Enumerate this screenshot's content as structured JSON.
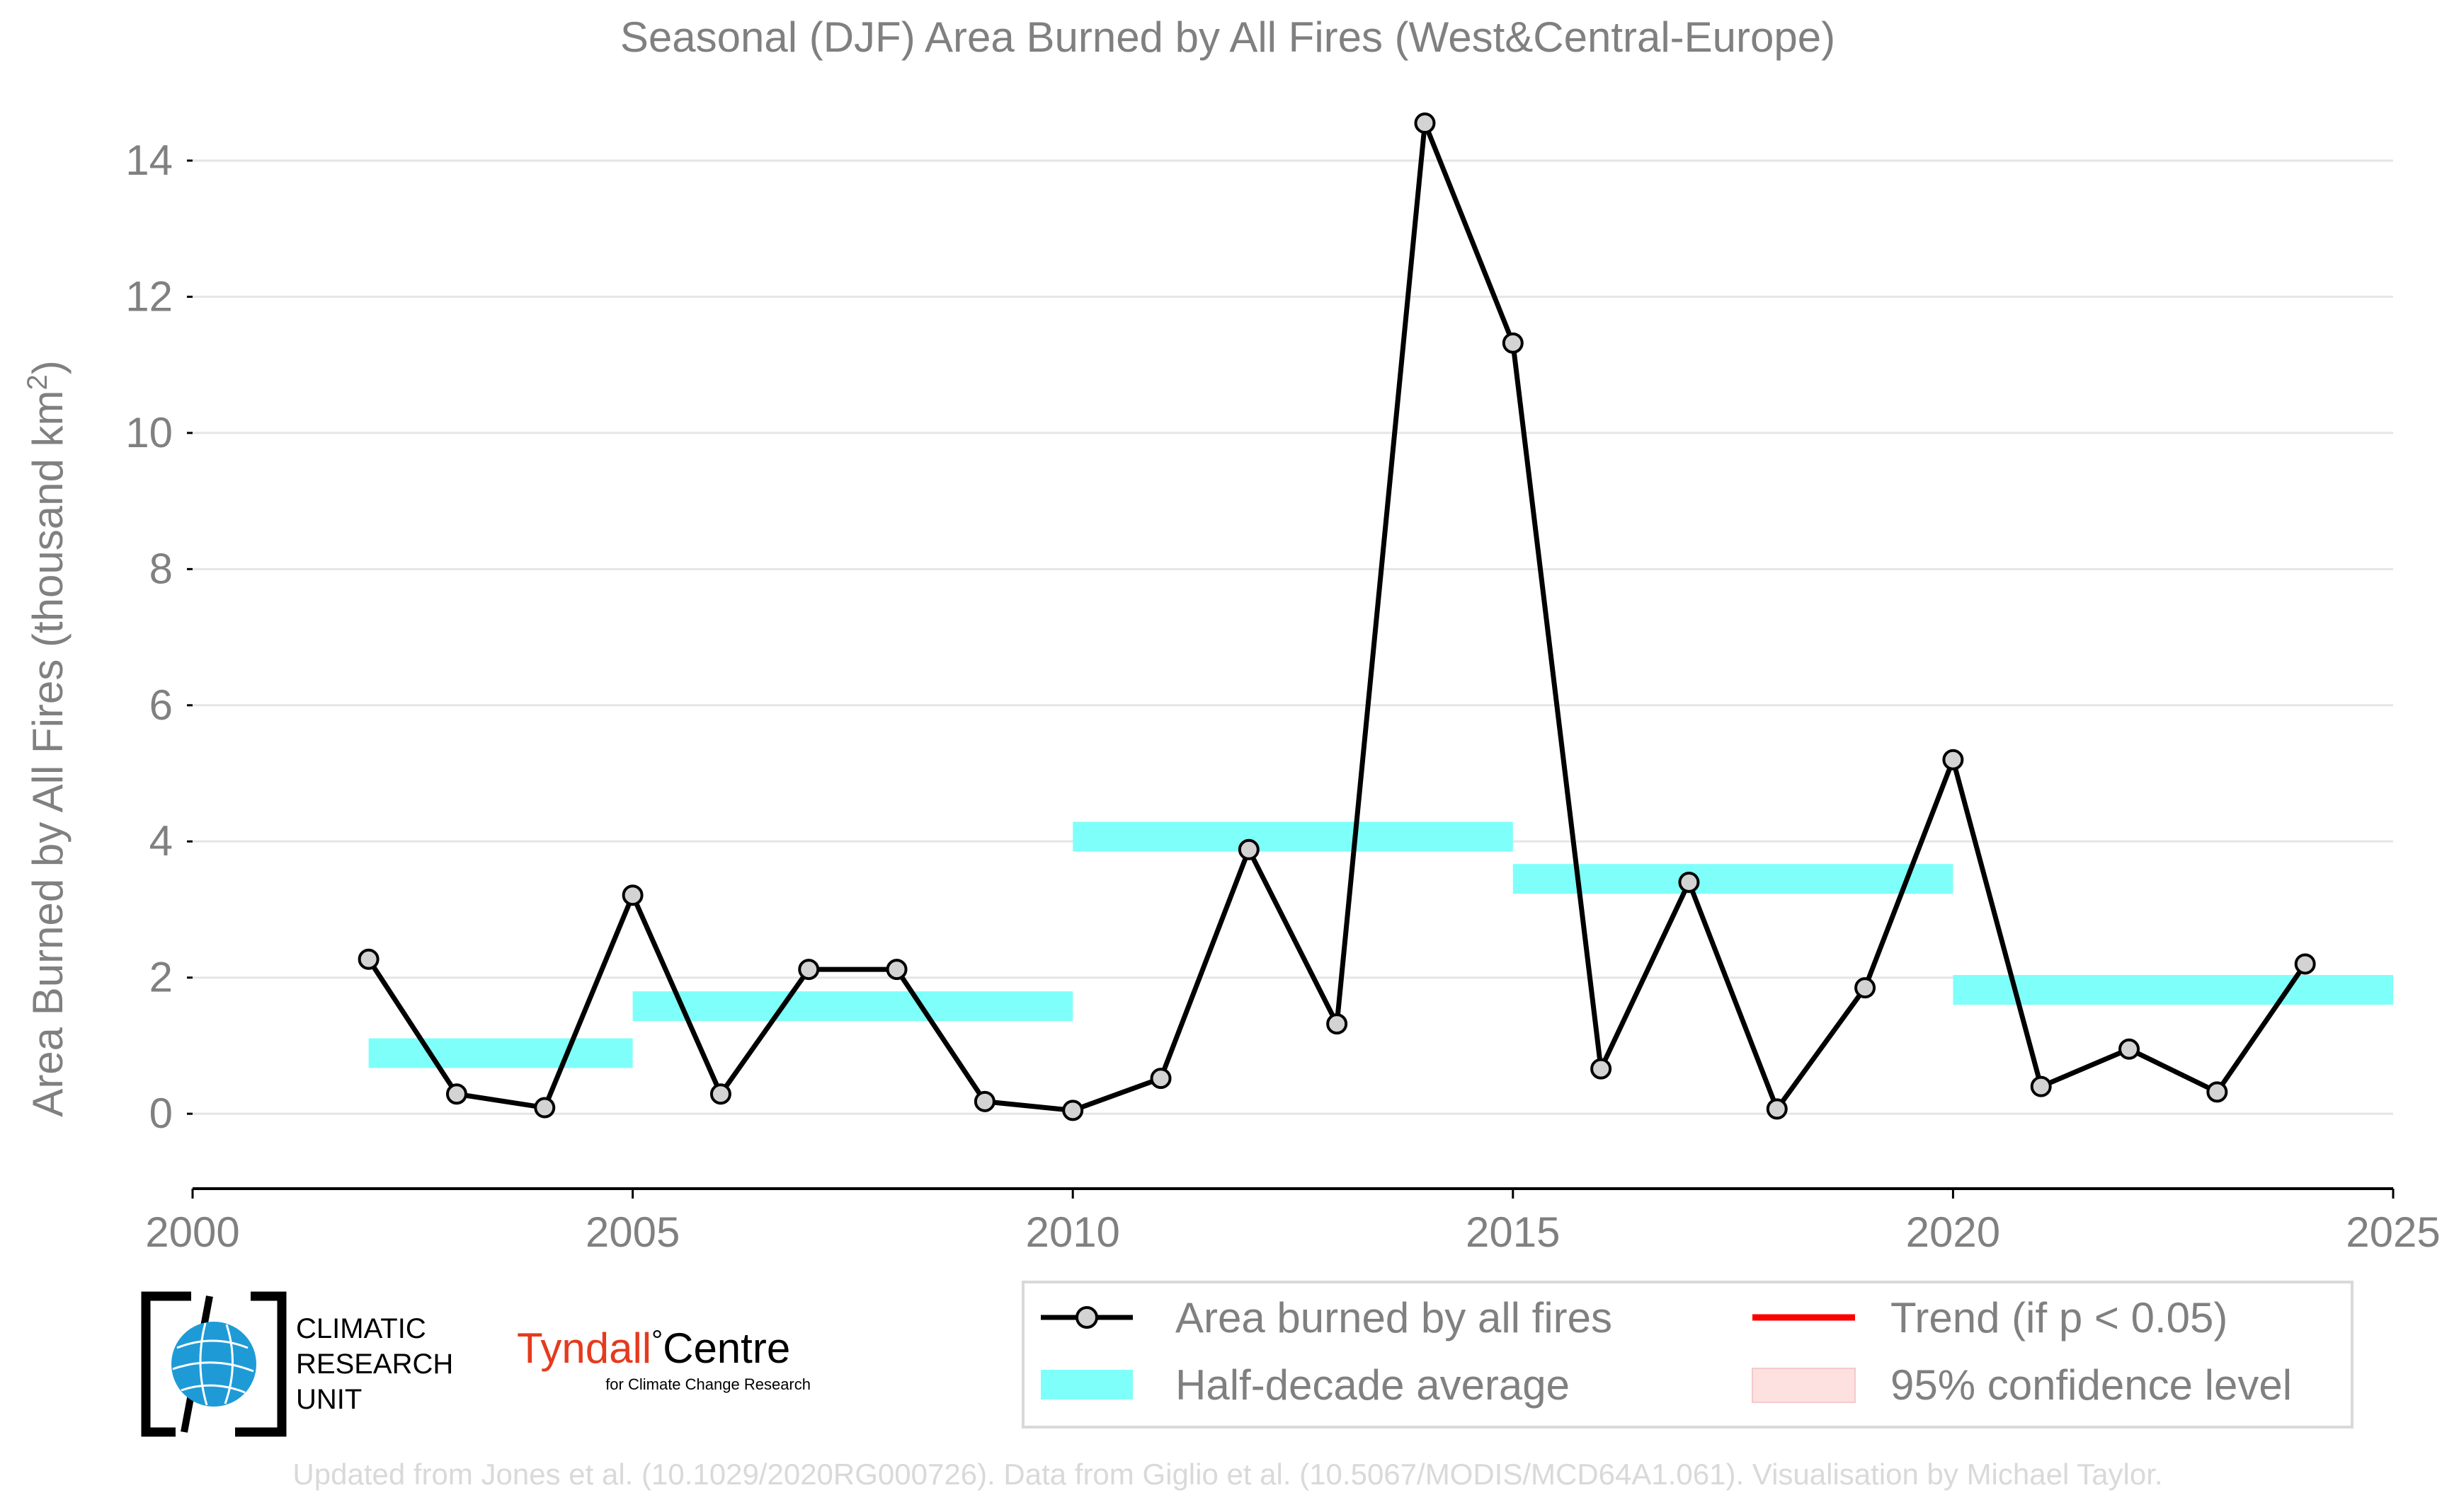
{
  "chart_data": {
    "type": "line",
    "title": "Seasonal (DJF) Area Burned by All Fires (West&Central-Europe)",
    "ylabel": "Area Burned by All Fires (thousand km",
    "ylabel_superscript": "2",
    "ylabel_suffix": ")",
    "xlabel": "",
    "xlim": [
      2000,
      2025
    ],
    "ylim": [
      -1.1,
      14.8
    ],
    "xticks": [
      2000,
      2005,
      2010,
      2015,
      2020,
      2025
    ],
    "yticks": [
      0,
      2,
      4,
      6,
      8,
      10,
      12,
      14
    ],
    "grid": "horizontal",
    "series": [
      {
        "name": "Area burned by all fires",
        "color": "#000000",
        "marker_fill": "#d3d3d3",
        "x": [
          2002,
          2003,
          2004,
          2005,
          2006,
          2007,
          2008,
          2009,
          2010,
          2011,
          2012,
          2013,
          2014,
          2015,
          2016,
          2017,
          2018,
          2019,
          2020,
          2021,
          2022,
          2023,
          2024
        ],
        "y": [
          2.27,
          0.29,
          0.09,
          3.21,
          0.29,
          2.12,
          2.12,
          0.18,
          0.05,
          0.52,
          3.88,
          1.32,
          14.55,
          11.32,
          0.66,
          3.4,
          0.07,
          1.85,
          5.2,
          0.4,
          0.95,
          0.32,
          2.2
        ]
      }
    ],
    "half_decade_averages": {
      "name": "Half-decade average",
      "color": "#7ffffa",
      "segments": [
        {
          "x0": 2002,
          "x1": 2005,
          "y": 0.89
        },
        {
          "x0": 2005,
          "x1": 2010,
          "y": 1.58
        },
        {
          "x0": 2010,
          "x1": 2015,
          "y": 4.07
        },
        {
          "x0": 2015,
          "x1": 2020,
          "y": 3.45
        },
        {
          "x0": 2020,
          "x1": 2025,
          "y": 1.82
        }
      ]
    },
    "legend": {
      "placement": "bottom-right",
      "entries": [
        {
          "label": "Area burned by all fires",
          "symbol": "line-marker",
          "color": "#000000"
        },
        {
          "label": "Trend (if p < 0.05)",
          "symbol": "line",
          "color": "#ff0000"
        },
        {
          "label": "Half-decade average",
          "symbol": "band",
          "color": "#7ffffa"
        },
        {
          "label": "95% confidence level",
          "symbol": "patch",
          "color": "#fde0e0"
        }
      ]
    }
  },
  "logos": {
    "cru_lines": [
      "CLIMATIC",
      "RESEARCH",
      "UNIT"
    ],
    "tyndall_name": "Tyndall",
    "tyndall_degree": "°",
    "tyndall_centre": "Centre",
    "tyndall_sub": "for Climate Change Research"
  },
  "credit": "Updated from Jones et al. (10.1029/2020RG000726). Data from Giglio et al. (10.5067/MODIS/MCD64A1.061). Visualisation by Michael Taylor.",
  "colors": {
    "text_gray": "#808080",
    "grid": "#e5e5e5",
    "credit": "#d9d9d9",
    "cru_blue": "#1e9bd7",
    "tyndall_red": "#e53a1e"
  }
}
